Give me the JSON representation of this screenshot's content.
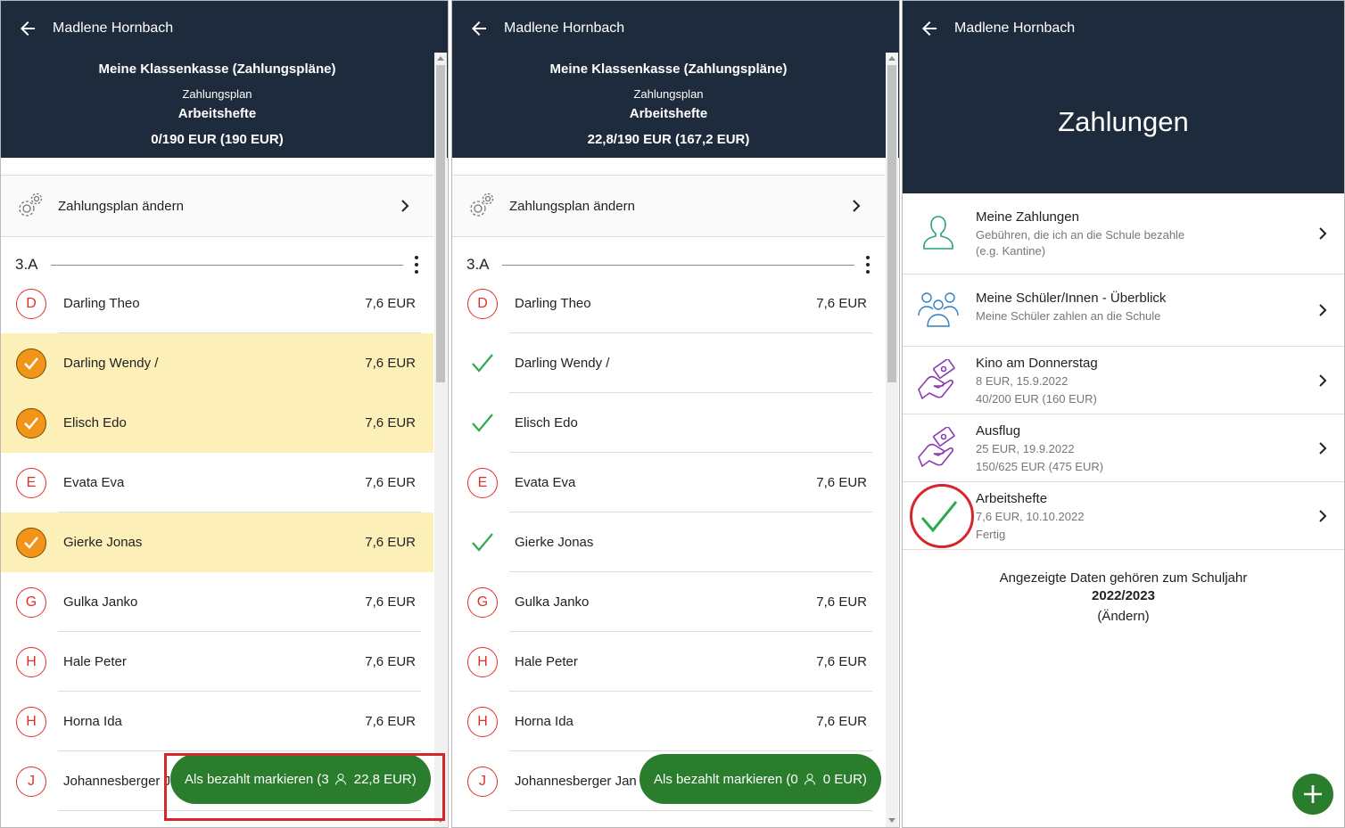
{
  "colors": {
    "header_bg": "#1e2b3c",
    "accent_green": "#2b7d2e",
    "avatar_red": "#e0302b",
    "selected_bg": "#fdefb8",
    "check_orange": "#f29417",
    "highlight_red": "#d7262a"
  },
  "panel1": {
    "user": "Madlene Hornbach",
    "title": "Meine Klassenkasse (Zahlungspläne)",
    "subtitle": "Zahlungsplan",
    "plan": "Arbeitshefte",
    "amount": "0/190 EUR (190 EUR)",
    "settings_label": "Zahlungsplan ändern",
    "group": "3.A",
    "rows": [
      {
        "initial": "D",
        "name": "Darling Theo",
        "amount": "7,6 EUR",
        "state": "open"
      },
      {
        "initial": "",
        "name": "Darling Wendy /",
        "amount": "7,6 EUR",
        "state": "selected"
      },
      {
        "initial": "",
        "name": "Elisch Edo",
        "amount": "7,6 EUR",
        "state": "selected"
      },
      {
        "initial": "E",
        "name": "Evata Eva",
        "amount": "7,6 EUR",
        "state": "open"
      },
      {
        "initial": "",
        "name": "Gierke Jonas",
        "amount": "7,6 EUR",
        "state": "selected"
      },
      {
        "initial": "G",
        "name": "Gulka Janko",
        "amount": "7,6 EUR",
        "state": "open"
      },
      {
        "initial": "H",
        "name": "Hale Peter",
        "amount": "7,6 EUR",
        "state": "open"
      },
      {
        "initial": "H",
        "name": "Horna Ida",
        "amount": "7,6 EUR",
        "state": "open"
      },
      {
        "initial": "J",
        "name": "Johannesberger Jan",
        "amount": "",
        "state": "open"
      }
    ],
    "fab": {
      "prefix": "Als bezahlt markieren (3",
      "amount": "22,8 EUR)"
    }
  },
  "panel2": {
    "user": "Madlene Hornbach",
    "title": "Meine Klassenkasse (Zahlungspläne)",
    "subtitle": "Zahlungsplan",
    "plan": "Arbeitshefte",
    "amount": "22,8/190 EUR (167,2 EUR)",
    "settings_label": "Zahlungsplan ändern",
    "group": "3.A",
    "rows": [
      {
        "initial": "D",
        "name": "Darling Theo",
        "amount": "7,6 EUR",
        "state": "open"
      },
      {
        "initial": "",
        "name": "Darling Wendy /",
        "amount": "",
        "state": "paid"
      },
      {
        "initial": "",
        "name": "Elisch Edo",
        "amount": "",
        "state": "paid"
      },
      {
        "initial": "E",
        "name": "Evata Eva",
        "amount": "7,6 EUR",
        "state": "open"
      },
      {
        "initial": "",
        "name": "Gierke Jonas",
        "amount": "",
        "state": "paid"
      },
      {
        "initial": "G",
        "name": "Gulka Janko",
        "amount": "7,6 EUR",
        "state": "open"
      },
      {
        "initial": "H",
        "name": "Hale Peter",
        "amount": "7,6 EUR",
        "state": "open"
      },
      {
        "initial": "H",
        "name": "Horna Ida",
        "amount": "7,6 EUR",
        "state": "open"
      },
      {
        "initial": "J",
        "name": "Johannesberger Jan",
        "amount": "",
        "state": "open"
      }
    ],
    "fab": {
      "prefix": "Als bezahlt markieren (0",
      "amount": "0 EUR)"
    }
  },
  "panel3": {
    "user": "Madlene Hornbach",
    "title": "Zahlungen",
    "items": [
      {
        "icon": "person-icon",
        "title": "Meine Zahlungen",
        "lines": [
          "Gebühren, die ich an die Schule bezahle",
          "(e.g. Kantine)"
        ]
      },
      {
        "icon": "group-icon",
        "title": "Meine Schüler/Innen - Überblick",
        "lines": [
          "Meine Schüler zahlen an die Schule"
        ]
      },
      {
        "icon": "money-hand-icon",
        "title": "Kino am Donnerstag",
        "lines": [
          "8 EUR, 15.9.2022",
          "40/200 EUR (160 EUR)"
        ]
      },
      {
        "icon": "money-hand-icon",
        "title": "Ausflug",
        "lines": [
          "25 EUR, 19.9.2022",
          "150/625 EUR (475 EUR)"
        ]
      },
      {
        "icon": "check-icon",
        "title": "Arbeitshefte",
        "lines": [
          "7,6 EUR, 10.10.2022",
          "Fertig"
        ]
      }
    ],
    "schoolyear": {
      "text": "Angezeigte Daten gehören zum Schuljahr",
      "year": "2022/2023",
      "change": "(Ändern)"
    }
  }
}
